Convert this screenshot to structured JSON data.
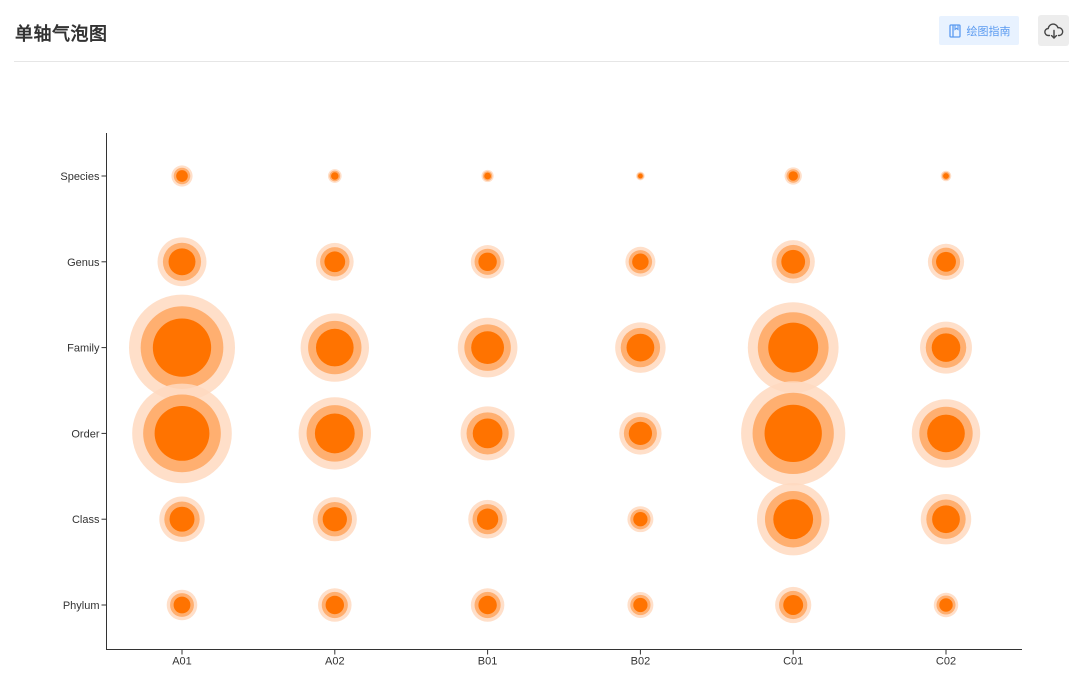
{
  "header": {
    "title": "单轴气泡图",
    "guide_label": "绘图指南"
  },
  "icons": {
    "guide": "book-icon",
    "download": "cloud-download-icon"
  },
  "colors": {
    "bubble_core": "#ff7300",
    "bubble_mid": "#ffaa66",
    "bubble_halo": "#ffd9bf",
    "accent_blue": "#5a9af0",
    "axis": "#333333"
  },
  "chart_data": {
    "type": "scatter",
    "subtype": "single-axis bubble",
    "title": "",
    "xlabel": "",
    "ylabel": "",
    "categories": [
      "A01",
      "A02",
      "B01",
      "B02",
      "C01",
      "C02"
    ],
    "rows": [
      "Species",
      "Genus",
      "Family",
      "Order",
      "Class",
      "Phylum"
    ],
    "values": [
      [
        12,
        5,
        4,
        2,
        8,
        3
      ],
      [
        64,
        38,
        30,
        24,
        50,
        35
      ],
      [
        300,
        125,
        95,
        68,
        220,
        72
      ],
      [
        265,
        140,
        78,
        48,
        290,
        125
      ],
      [
        55,
        52,
        40,
        18,
        140,
        68
      ],
      [
        25,
        30,
        30,
        18,
        35,
        16
      ]
    ],
    "grid": false,
    "legend": "none"
  }
}
